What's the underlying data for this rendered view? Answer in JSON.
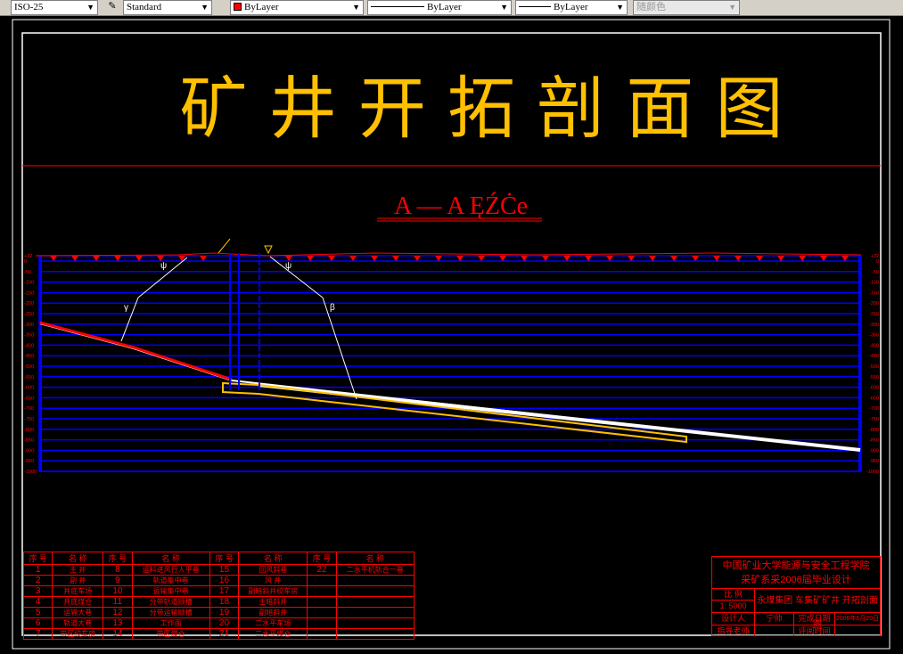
{
  "toolbar": {
    "dimstyle": "ISO-25",
    "textstyle": "Standard",
    "color": "ByLayer",
    "linetype": "ByLayer",
    "lineweight": "ByLayer",
    "plotstyle": "随颜色",
    "color_hex": "#ff0000"
  },
  "drawing": {
    "title": "矿 井 开 拓 剖 面 图",
    "section_title": "A — A ĘŹĊe",
    "elevation_labels": [
      "+32",
      "0",
      "-50",
      "-100",
      "-150",
      "-200",
      "-250",
      "-300",
      "-350",
      "-400",
      "-450",
      "-500",
      "-550",
      "-600",
      "-650",
      "-700",
      "-750",
      "-800",
      "-850",
      "-900",
      "-950",
      "-1000"
    ],
    "angle_labels": {
      "psi_left": "ψ",
      "psi_right": "ψ",
      "gamma": "γ",
      "beta": "β"
    },
    "colors": {
      "frame": "#ffffff",
      "title": "#ffc000",
      "red": "#ff0000",
      "grid": "#0000ff",
      "seam": "#ffc000"
    }
  },
  "legend": {
    "header": [
      "序 号",
      "名 称",
      "序 号",
      "名 称",
      "序 号",
      "名 称",
      "序 号",
      "名 称"
    ],
    "rows": [
      [
        "1",
        "主 井",
        "8",
        "运料进风行人平巷",
        "15",
        "回风斜巷",
        "22",
        "二水平机轨合一巷"
      ],
      [
        "2",
        "副 井",
        "9",
        "轨道集中巷",
        "16",
        "风 井",
        "",
        ""
      ],
      [
        "3",
        "井底车场",
        "10",
        "运输集中巷",
        "17",
        "副暗斜井绞车房",
        "",
        ""
      ],
      [
        "4",
        "井底煤仓",
        "11",
        "分带轨道顺槽",
        "18",
        "主暗斜井",
        "",
        ""
      ],
      [
        "5",
        "运输大巷",
        "12",
        "分带运输顺槽",
        "19",
        "副暗斜井",
        "",
        ""
      ],
      [
        "6",
        "轨道大巷",
        "13",
        "工作面",
        "20",
        "二水平车场",
        "",
        ""
      ],
      [
        "7",
        "带区绞车房",
        "14",
        "带区煤仓",
        "21",
        "二水平煤仓",
        "",
        ""
      ]
    ]
  },
  "title_block": {
    "school": "中国矿业大学能源与安全工程学院",
    "class": "采矿系采2006届毕业设计",
    "scale_label": "比 例",
    "scale_value": "1: 5000",
    "drawing_name": "永煤集团 车集矿矿井 开拓剖面图",
    "designer_label": "设计人",
    "designer": "宁帅",
    "date_label": "完成日期",
    "date": "2006年6月20日",
    "advisor_label": "指导老师",
    "review_label": "评阅时间"
  }
}
